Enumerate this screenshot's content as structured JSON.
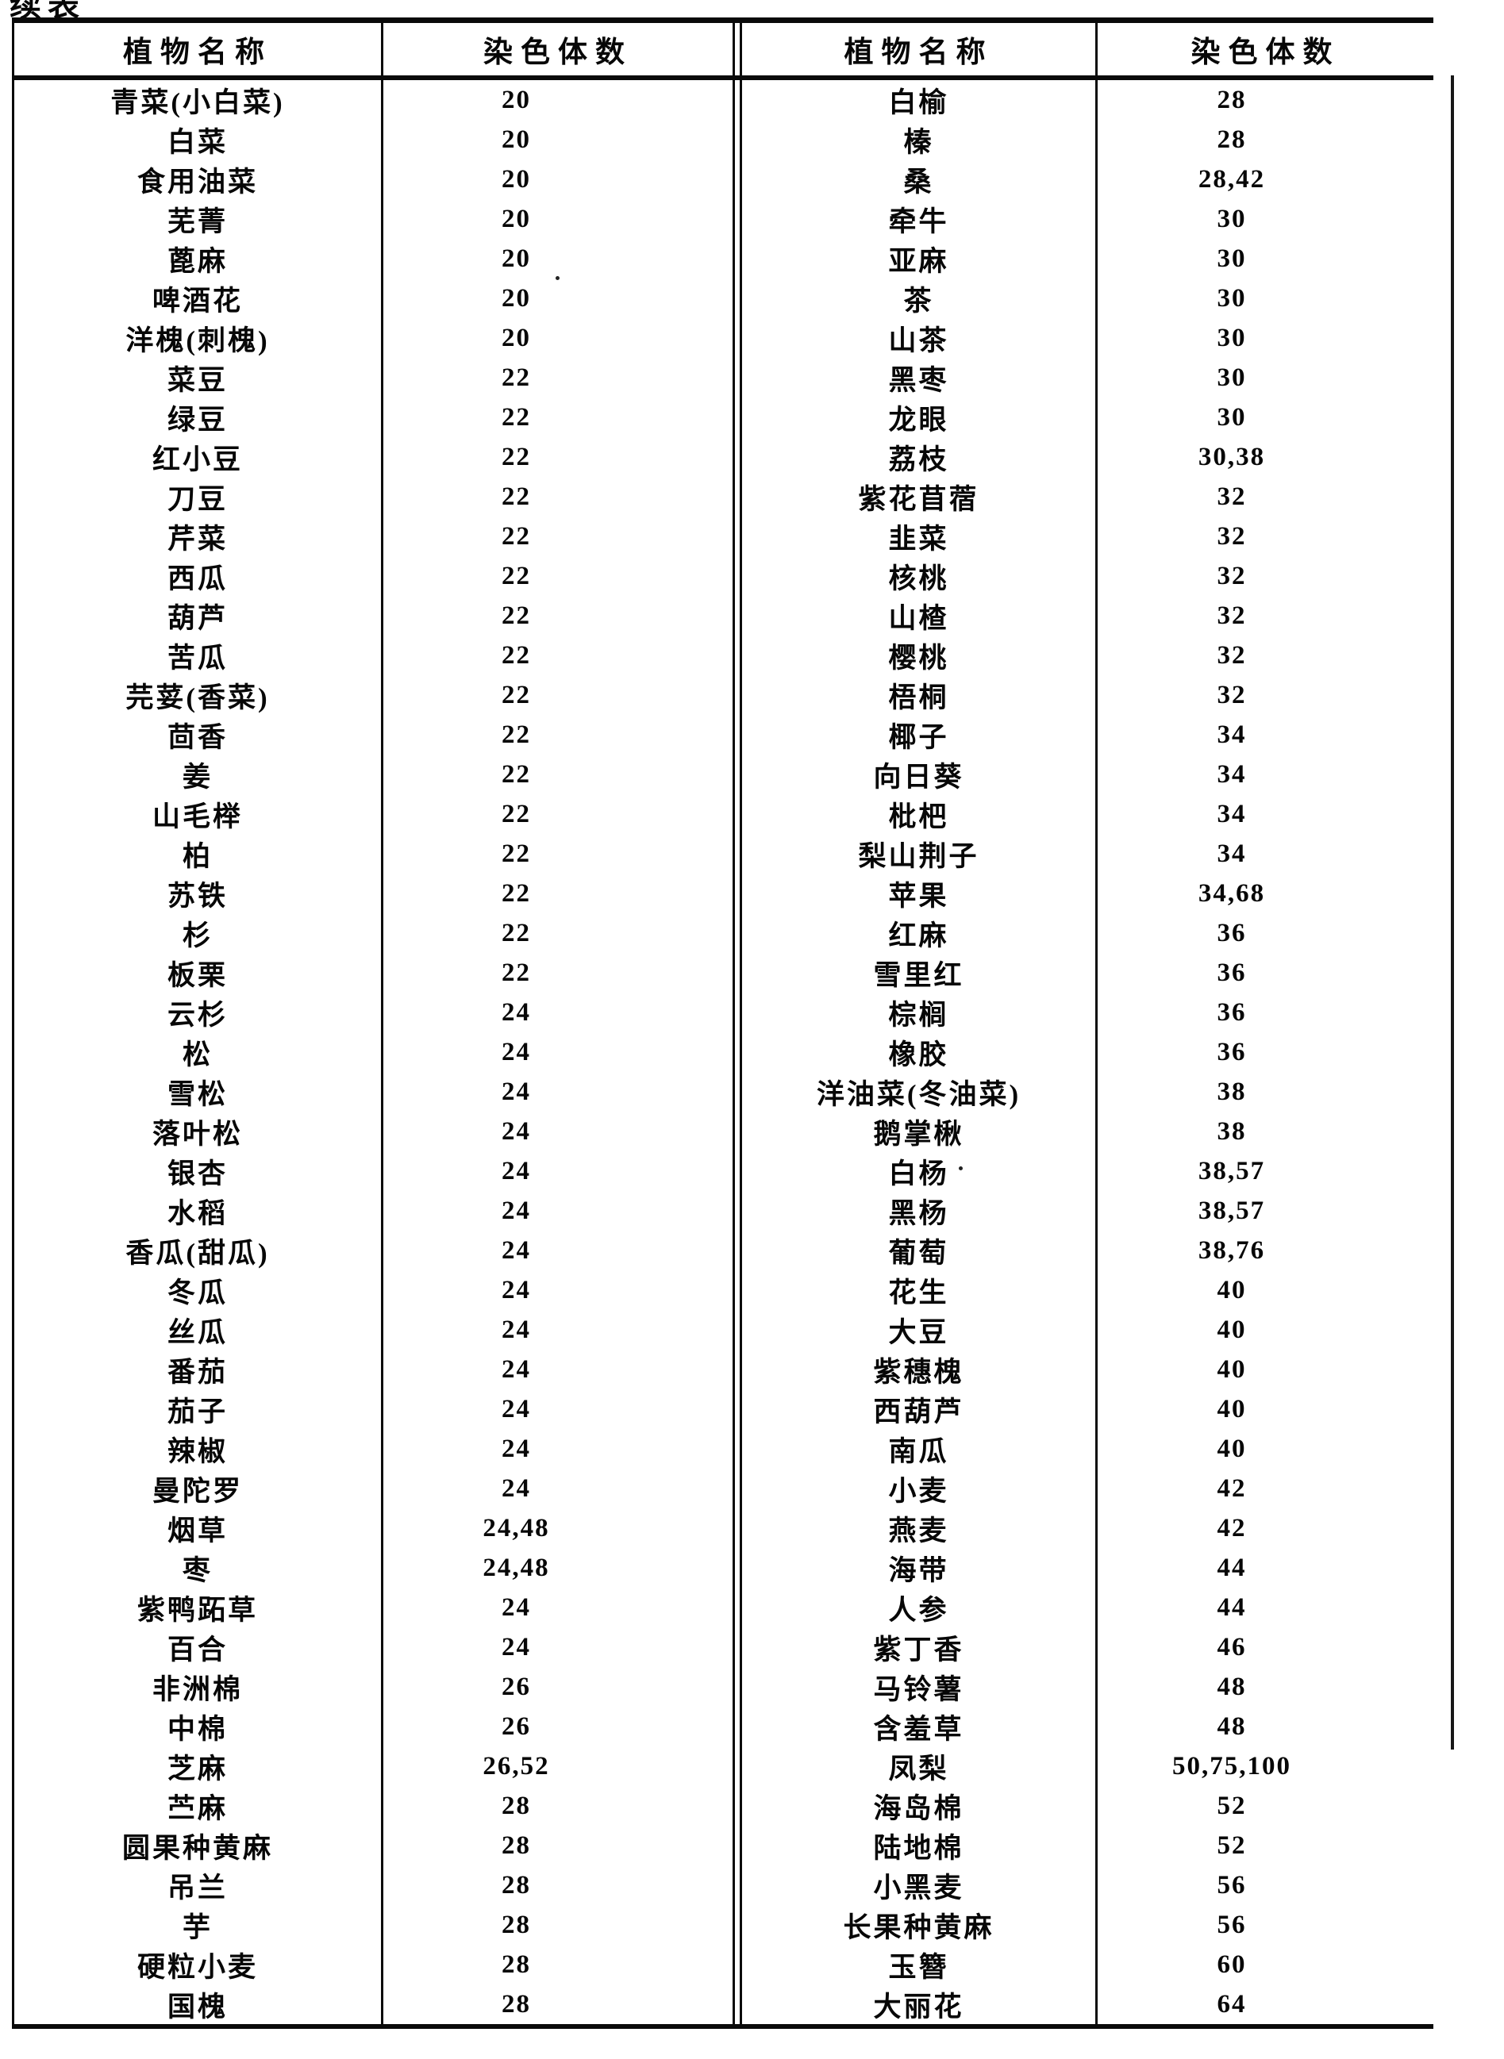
{
  "page": {
    "continuation_label": "续表"
  },
  "colors": {
    "ink": "#0a0a0a",
    "paper": "#ffffff"
  },
  "table": {
    "headers": [
      "植物名称",
      "染色体数",
      "植物名称",
      "染色体数"
    ],
    "rows": [
      [
        "青菜(小白菜)",
        "20",
        "白榆",
        "28"
      ],
      [
        "白菜",
        "20",
        "榛",
        "28"
      ],
      [
        "食用油菜",
        "20",
        "桑",
        "28,42"
      ],
      [
        "芜菁",
        "20",
        "牵牛",
        "30"
      ],
      [
        "蓖麻",
        "20",
        "亚麻",
        "30"
      ],
      [
        "啤酒花",
        "20",
        "茶",
        "30"
      ],
      [
        "洋槐(刺槐)",
        "20",
        "山茶",
        "30"
      ],
      [
        "菜豆",
        "22",
        "黑枣",
        "30"
      ],
      [
        "绿豆",
        "22",
        "龙眼",
        "30"
      ],
      [
        "红小豆",
        "22",
        "荔枝",
        "30,38"
      ],
      [
        "刀豆",
        "22",
        "紫花苜蓿",
        "32"
      ],
      [
        "芹菜",
        "22",
        "韭菜",
        "32"
      ],
      [
        "西瓜",
        "22",
        "核桃",
        "32"
      ],
      [
        "葫芦",
        "22",
        "山楂",
        "32"
      ],
      [
        "苦瓜",
        "22",
        "樱桃",
        "32"
      ],
      [
        "芫荽(香菜)",
        "22",
        "梧桐",
        "32"
      ],
      [
        "茴香",
        "22",
        "椰子",
        "34"
      ],
      [
        "姜",
        "22",
        "向日葵",
        "34"
      ],
      [
        "山毛榉",
        "22",
        "枇杷",
        "34"
      ],
      [
        "柏",
        "22",
        "梨山荆子",
        "34"
      ],
      [
        "苏铁",
        "22",
        "苹果",
        "34,68"
      ],
      [
        "杉",
        "22",
        "红麻",
        "36"
      ],
      [
        "板栗",
        "22",
        "雪里红",
        "36"
      ],
      [
        "云杉",
        "24",
        "棕榈",
        "36"
      ],
      [
        "松",
        "24",
        "橡胶",
        "36"
      ],
      [
        "雪松",
        "24",
        "洋油菜(冬油菜)",
        "38"
      ],
      [
        "落叶松",
        "24",
        "鹅掌楸",
        "38"
      ],
      [
        "银杏",
        "24",
        "白杨",
        "38,57"
      ],
      [
        "水稻",
        "24",
        "黑杨",
        "38,57"
      ],
      [
        "香瓜(甜瓜)",
        "24",
        "葡萄",
        "38,76"
      ],
      [
        "冬瓜",
        "24",
        "花生",
        "40"
      ],
      [
        "丝瓜",
        "24",
        "大豆",
        "40"
      ],
      [
        "番茄",
        "24",
        "紫穗槐",
        "40"
      ],
      [
        "茄子",
        "24",
        "西葫芦",
        "40"
      ],
      [
        "辣椒",
        "24",
        "南瓜",
        "40"
      ],
      [
        "曼陀罗",
        "24",
        "小麦",
        "42"
      ],
      [
        "烟草",
        "24,48",
        "燕麦",
        "42"
      ],
      [
        "枣",
        "24,48",
        "海带",
        "44"
      ],
      [
        "紫鸭跖草",
        "24",
        "人参",
        "44"
      ],
      [
        "百合",
        "24",
        "紫丁香",
        "46"
      ],
      [
        "非洲棉",
        "26",
        "马铃薯",
        "48"
      ],
      [
        "中棉",
        "26",
        "含羞草",
        "48"
      ],
      [
        "芝麻",
        "26,52",
        "凤梨",
        "50,75,100"
      ],
      [
        "苎麻",
        "28",
        "海岛棉",
        "52"
      ],
      [
        "圆果种黄麻",
        "28",
        "陆地棉",
        "52"
      ],
      [
        "吊兰",
        "28",
        "小黑麦",
        "56"
      ],
      [
        "芋",
        "28",
        "长果种黄麻",
        "56"
      ],
      [
        "硬粒小麦",
        "28",
        "玉簪",
        "60"
      ],
      [
        "国槐",
        "28",
        "大丽花",
        "64"
      ]
    ]
  }
}
